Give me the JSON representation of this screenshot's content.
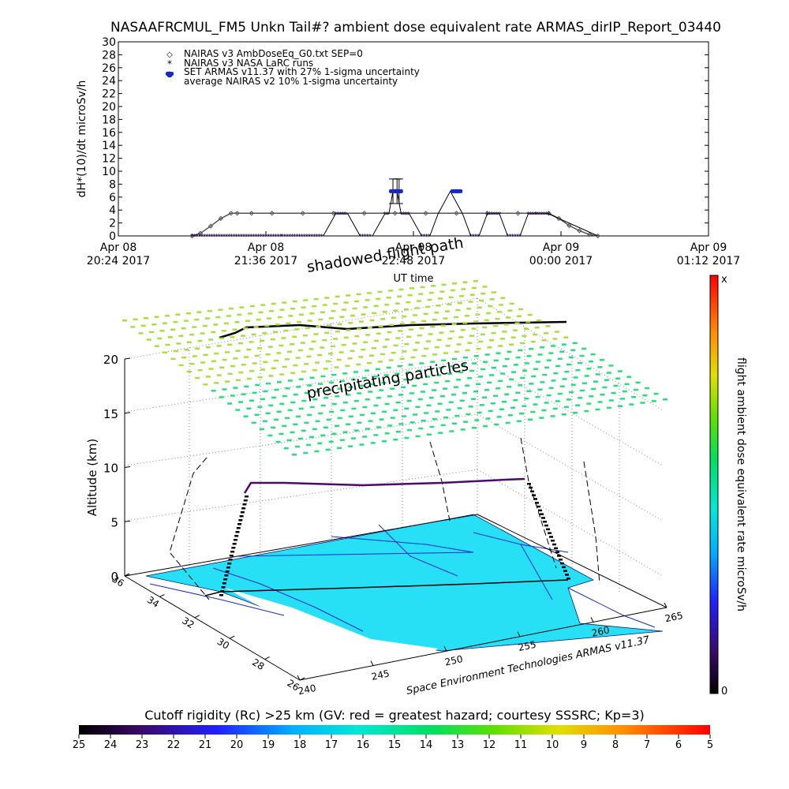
{
  "title": "NASAAFRCMUL_FM5 Unkn Tail#? ambient dose equivalent rate ARMAS_dirIP_Report_03440",
  "time_plot": {
    "ylabel": "dH*(10)/dt microSv/h",
    "xlabel": "UT time",
    "legend": [
      {
        "symbol": "◇",
        "text": "NAIRAS v3 AmbDoseEq_G0.txt SEP=0"
      },
      {
        "symbol": "*",
        "text": "NAIRAS v3 NASA LaRC runs"
      },
      {
        "symbol": "●",
        "text": "SET ARMAS v11.37 with 27% 1-sigma uncertainty"
      },
      {
        "symbol": "",
        "text": "average NAIRAS v2 10% 1-sigma uncertainty"
      }
    ]
  },
  "chart_data": [
    {
      "type": "line",
      "title": "NASAAFRCMUL_FM5 Unkn Tail#? ambient dose equivalent rate ARMAS_dirIP_Report_03440",
      "xlabel": "UT time",
      "ylabel": "dH*(10)/dt microSv/h",
      "ylim": [
        0,
        30
      ],
      "yticks": [
        0,
        2,
        4,
        6,
        8,
        10,
        12,
        14,
        16,
        18,
        20,
        22,
        24,
        26,
        28,
        30
      ],
      "xlim_minutes": [
        0,
        288
      ],
      "xticks": [
        {
          "t": 0,
          "line1": "Apr 08",
          "line2": "20:24 2017"
        },
        {
          "t": 72,
          "line1": "Apr 08",
          "line2": "21:36 2017"
        },
        {
          "t": 144,
          "line1": "Apr 08",
          "line2": "22:48 2017"
        },
        {
          "t": 216,
          "line1": "Apr 09",
          "line2": "00:00 2017"
        },
        {
          "t": 288,
          "line1": "Apr 09",
          "line2": "01:12 2017"
        }
      ],
      "series": [
        {
          "name": "NAIRAS v3 AmbDoseEq_G0.txt SEP=0",
          "color": "#555555",
          "x": [
            36,
            40,
            45,
            50,
            55,
            58,
            65,
            75,
            90,
            105,
            120,
            135,
            150,
            165,
            180,
            195,
            210,
            215,
            220,
            225,
            230,
            234
          ],
          "y": [
            0,
            0.4,
            1.5,
            2.7,
            3.5,
            3.5,
            3.5,
            3.5,
            3.5,
            3.5,
            3.5,
            3.5,
            3.5,
            3.5,
            3.5,
            3.5,
            3.5,
            2.7,
            1.6,
            0.8,
            0.2,
            0
          ]
        },
        {
          "name": "NAIRAS v3 NASA LaRC runs",
          "color": "#000000",
          "x": [
            36,
            80,
            100,
            106,
            112,
            118,
            124,
            130,
            132,
            134,
            136,
            138,
            142,
            148,
            152,
            156,
            162,
            168,
            172,
            176,
            180,
            186,
            190,
            196,
            200,
            204,
            210,
            234
          ],
          "y": [
            0,
            0,
            0,
            3.4,
            3.4,
            0,
            0,
            3.4,
            3.4,
            6.9,
            6.9,
            3.4,
            3.4,
            0,
            0,
            3.4,
            6.9,
            3.4,
            0,
            0,
            3.4,
            3.4,
            0,
            0,
            3.4,
            3.4,
            3.4,
            0
          ]
        },
        {
          "name": "SET ARMAS v11.37 with 27% 1-sigma uncertainty",
          "color": "#1428c8",
          "x": [
            134,
            136,
            137,
            164,
            166
          ],
          "y": [
            6.9,
            6.9,
            6.9,
            6.9,
            6.9
          ],
          "err": [
            1.9,
            1.9,
            1.9,
            0.4,
            0.4
          ]
        }
      ]
    },
    {
      "type": "surface",
      "zlabel": "Altitude (km)",
      "zlim": [
        0,
        20
      ],
      "zticks": [
        0,
        5,
        10,
        15,
        20
      ],
      "lat_ticks": [
        36,
        34,
        32,
        30,
        28,
        26
      ],
      "lon_ticks": [
        240,
        245,
        250,
        255,
        260,
        265
      ],
      "annotations": [
        "shadowed flight path",
        "precipitating particles"
      ],
      "footer": "Space Environment Technologies ARMAS v11.37"
    }
  ],
  "colorbar_right": {
    "label": "flight ambient dose equivalent rate microSv/h",
    "top_label": "x",
    "bottom_label": "0"
  },
  "colorbar_bottom": {
    "label": "Cutoff rigidity (Rc) >25 km (GV: red = greatest hazard; courtesy SSSRC; Kp=3)",
    "ticks": [
      25,
      24,
      23,
      22,
      21,
      20,
      19,
      18,
      17,
      16,
      15,
      14,
      13,
      12,
      11,
      10,
      9,
      8,
      7,
      6,
      5
    ]
  },
  "colors": {
    "ground_fill": "#27e0f5",
    "grid_arrow_top": "#a6e03a",
    "grid_arrow_bottom": "#22e07a",
    "flight_path": "#000000",
    "shadow_path": "#4a0a6e"
  }
}
